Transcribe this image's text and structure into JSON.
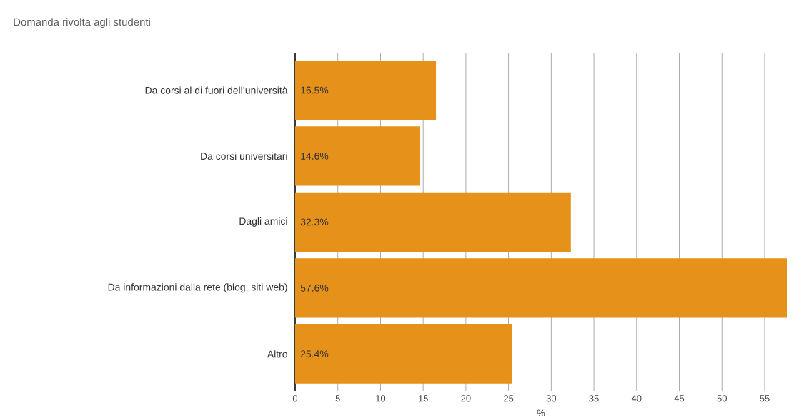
{
  "chart_data": {
    "type": "bar",
    "orientation": "horizontal",
    "title": "Domanda rivolta agli studenti",
    "xlabel": "%",
    "categories": [
      "Da corsi al di fuori dell’università",
      "Da corsi universitari",
      "Dagli amici",
      "Da informazioni dalla rete (blog, siti web)",
      "Altro"
    ],
    "values": [
      16.5,
      14.6,
      32.3,
      57.6,
      25.4
    ],
    "color": "#e6921a",
    "value_labels": [
      "16.5%",
      "14.6%",
      "32.3%",
      "57.6%",
      "25.4%"
    ],
    "xlim": [
      0,
      57.6
    ],
    "xticks": [
      0,
      5,
      10,
      15,
      20,
      25,
      30,
      35,
      40,
      45,
      50,
      55
    ],
    "grid": "x"
  }
}
